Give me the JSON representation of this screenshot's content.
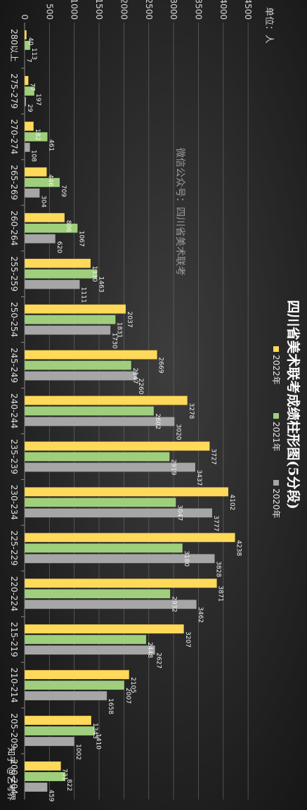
{
  "chart_data": {
    "type": "bar",
    "orientation": "rotated-90-clockwise",
    "title": "四川省美术联考成绩柱形图(5分段)",
    "unit_label": "单位：人",
    "watermark": "微信公众号：四川省美术联考",
    "credit": "知乎 @艺考界",
    "categories": [
      "280以上",
      "275-279",
      "270-274",
      "265-269",
      "260-264",
      "255-259",
      "250-254",
      "245-249",
      "240-244",
      "235-239",
      "230-234",
      "225-229",
      "220-224",
      "215-219",
      "210-214",
      "205-209",
      "200-204"
    ],
    "y_ticks": [
      0,
      500,
      1000,
      1500,
      2000,
      2500,
      3000,
      3500,
      4000,
      4500
    ],
    "ylim": [
      0,
      4500
    ],
    "grid": true,
    "legend_position": "right",
    "series": [
      {
        "name": "2022年",
        "color": "#ffd95a",
        "values": [
          40,
          77,
          182,
          446,
          806,
          1330,
          2037,
          2669,
          3278,
          3727,
          4102,
          4238,
          3871,
          3207,
          2105,
          1343,
          731
        ]
      },
      {
        "name": "2021年",
        "color": "#9fcf7c",
        "values": [
          113,
          197,
          461,
          709,
          1067,
          1463,
          1831,
          2147,
          2602,
          2919,
          3047,
          3180,
          2932,
          2448,
          2007,
          1410,
          822
        ]
      },
      {
        "name": "2020年",
        "color": "#a6a6a6",
        "values": [
          7,
          29,
          108,
          304,
          620,
          1111,
          1730,
          2260,
          3020,
          3437,
          3777,
          3828,
          3462,
          2627,
          1658,
          1002,
          459
        ]
      }
    ]
  }
}
